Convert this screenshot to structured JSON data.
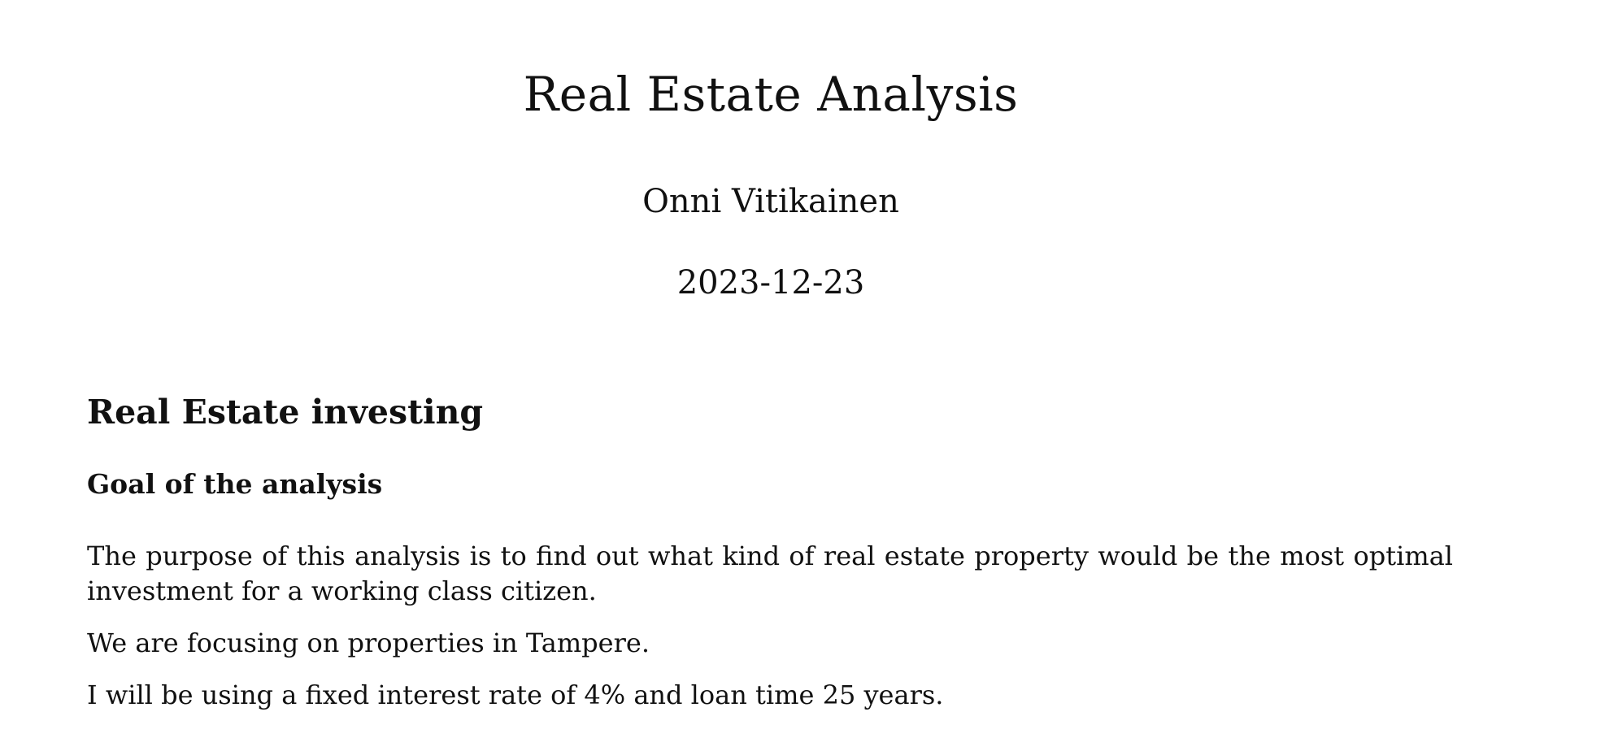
{
  "document": {
    "title": "Real Estate Analysis",
    "author": "Onni Vitikainen",
    "date": "2023-12-23"
  },
  "section": {
    "heading": "Real Estate investing",
    "subsection": {
      "heading": "Goal of the analysis",
      "paragraphs": [
        "The purpose of this analysis is to find out what kind of real estate property would be the most optimal investment for a working class citizen.",
        "We are focusing on properties in Tampere.",
        "I will be using a fixed interest rate of 4% and loan time 25 years."
      ]
    }
  }
}
